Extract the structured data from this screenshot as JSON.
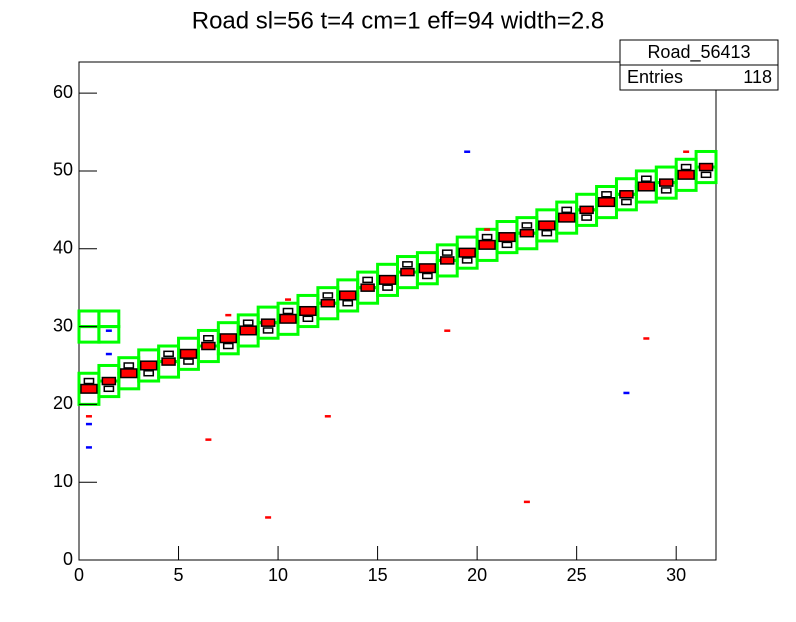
{
  "chart_data": {
    "type": "box2d",
    "title": "Road sl=56 t=4 cm=1 eff=94 width=2.8",
    "stats": {
      "name": "Road_56413",
      "entries_label": "Entries",
      "entries": 118
    },
    "xlim": [
      0,
      32
    ],
    "ylim": [
      0,
      64
    ],
    "xticks": [
      0,
      5,
      10,
      15,
      20,
      25,
      30
    ],
    "yticks": [
      0,
      10,
      20,
      30,
      40,
      50,
      60
    ],
    "road": {
      "name": "road",
      "color": "#00ff00",
      "x": [
        0.5,
        0.5,
        1.5,
        1.5,
        2.5,
        2.5,
        3.5,
        3.5,
        4.5,
        4.5,
        5.5,
        5.5,
        6.5,
        6.5,
        7.5,
        7.5,
        8.5,
        8.5,
        9.5,
        9.5,
        10.5,
        10.5,
        11.5,
        11.5,
        12.5,
        12.5,
        13.5,
        13.5,
        14.5,
        14.5,
        15.5,
        15.5,
        16.5,
        16.5,
        17.5,
        17.5,
        18.5,
        18.5,
        19.5,
        19.5,
        20.5,
        20.5,
        21.5,
        21.5,
        22.5,
        22.5,
        23.5,
        23.5,
        24.5,
        24.5,
        25.5,
        25.5,
        26.5,
        26.5,
        27.5,
        27.5,
        28.5,
        28.5,
        29.5,
        29.5,
        30.5,
        30.5,
        31.5,
        31.5,
        0.5,
        0.5,
        1.5,
        1.5
      ],
      "values": [
        21,
        23,
        22,
        24,
        23,
        25,
        24,
        26,
        24.5,
        26.5,
        25.5,
        27.5,
        26.5,
        28.5,
        27.5,
        29.5,
        28.5,
        30.5,
        29.5,
        31.5,
        30,
        32,
        31,
        33,
        32,
        34,
        33,
        35,
        34,
        36,
        35,
        37,
        36,
        38,
        36.5,
        38.5,
        37.5,
        39.5,
        38.5,
        40.5,
        39.5,
        41.5,
        40.5,
        42.5,
        41,
        43,
        42,
        44,
        43,
        45,
        44,
        46,
        45,
        47,
        46,
        48,
        47,
        49,
        47.5,
        49.5,
        48.5,
        50.5,
        49.5,
        51.5,
        29,
        31,
        29,
        31
      ]
    },
    "series": [
      {
        "name": "main",
        "color": "#ff0000",
        "x": [
          0.5,
          1.5,
          2.5,
          3.5,
          4.5,
          5.5,
          6.5,
          7.5,
          8.5,
          9.5,
          10.5,
          11.5,
          12.5,
          13.5,
          14.5,
          15.5,
          16.5,
          17.5,
          18.5,
          19.5,
          20.5,
          21.5,
          22.5,
          23.5,
          24.5,
          25.5,
          26.5,
          27.5,
          28.5,
          29.5,
          30.5,
          31.5
        ],
        "values": [
          22,
          23,
          24,
          25,
          25.5,
          26.5,
          27.5,
          28.5,
          29.5,
          30.5,
          31,
          32,
          33,
          34,
          35,
          36,
          37,
          37.5,
          38.5,
          39.5,
          40.5,
          41.5,
          42,
          43,
          44,
          45,
          46,
          47,
          48,
          48.5,
          49.5,
          50.5
        ],
        "counts": [
          3,
          2,
          3,
          3,
          2,
          3,
          2,
          3,
          3,
          2,
          3,
          3,
          2,
          3,
          2,
          3,
          2,
          3,
          2,
          3,
          3,
          3,
          2,
          3,
          3,
          2,
          3,
          2,
          3,
          2,
          3,
          2
        ]
      },
      {
        "name": "side",
        "color": "#ffffff",
        "x": [
          0.5,
          1.5,
          2.5,
          3.5,
          4.5,
          5.5,
          6.5,
          7.5,
          8.5,
          9.5,
          10.5,
          11.5,
          12.5,
          13.5,
          14.5,
          15.5,
          16.5,
          17.5,
          18.5,
          19.5,
          20.5,
          21.5,
          22.5,
          23.5,
          24.5,
          25.5,
          26.5,
          27.5,
          28.5,
          29.5,
          30.5,
          31.5
        ],
        "values": [
          23,
          22,
          25,
          24,
          26.5,
          25.5,
          28.5,
          27.5,
          30.5,
          29.5,
          32,
          31,
          34,
          33,
          36,
          35,
          38,
          36.5,
          39.5,
          38.5,
          41.5,
          40.5,
          43,
          42,
          45,
          44,
          47,
          46,
          49,
          47.5,
          50.5,
          49.5
        ],
        "counts": [
          1,
          1,
          1,
          1,
          1,
          1,
          1,
          1,
          1,
          1,
          1,
          1,
          1,
          1,
          1,
          1,
          1,
          1,
          1,
          1,
          1,
          1,
          1,
          1,
          1,
          1,
          1,
          1,
          1,
          1,
          1,
          1
        ]
      },
      {
        "name": "red",
        "color": "#ff0000",
        "x": [
          0.5,
          6.5,
          9.5,
          12.5,
          18.5,
          22.5,
          28.5,
          30.5,
          7.5,
          10.5,
          20.5
        ],
        "values": [
          18.5,
          15.5,
          5.5,
          18.5,
          29.5,
          7.5,
          28.5,
          52.5,
          31.5,
          33.5,
          42.5
        ]
      },
      {
        "name": "blue",
        "color": "#0000ff",
        "x": [
          19.5,
          0.5,
          0.5,
          1.5,
          27.5,
          1.5
        ],
        "values": [
          52.5,
          17.5,
          14.5,
          26.5,
          21.5,
          29.5
        ]
      }
    ]
  }
}
